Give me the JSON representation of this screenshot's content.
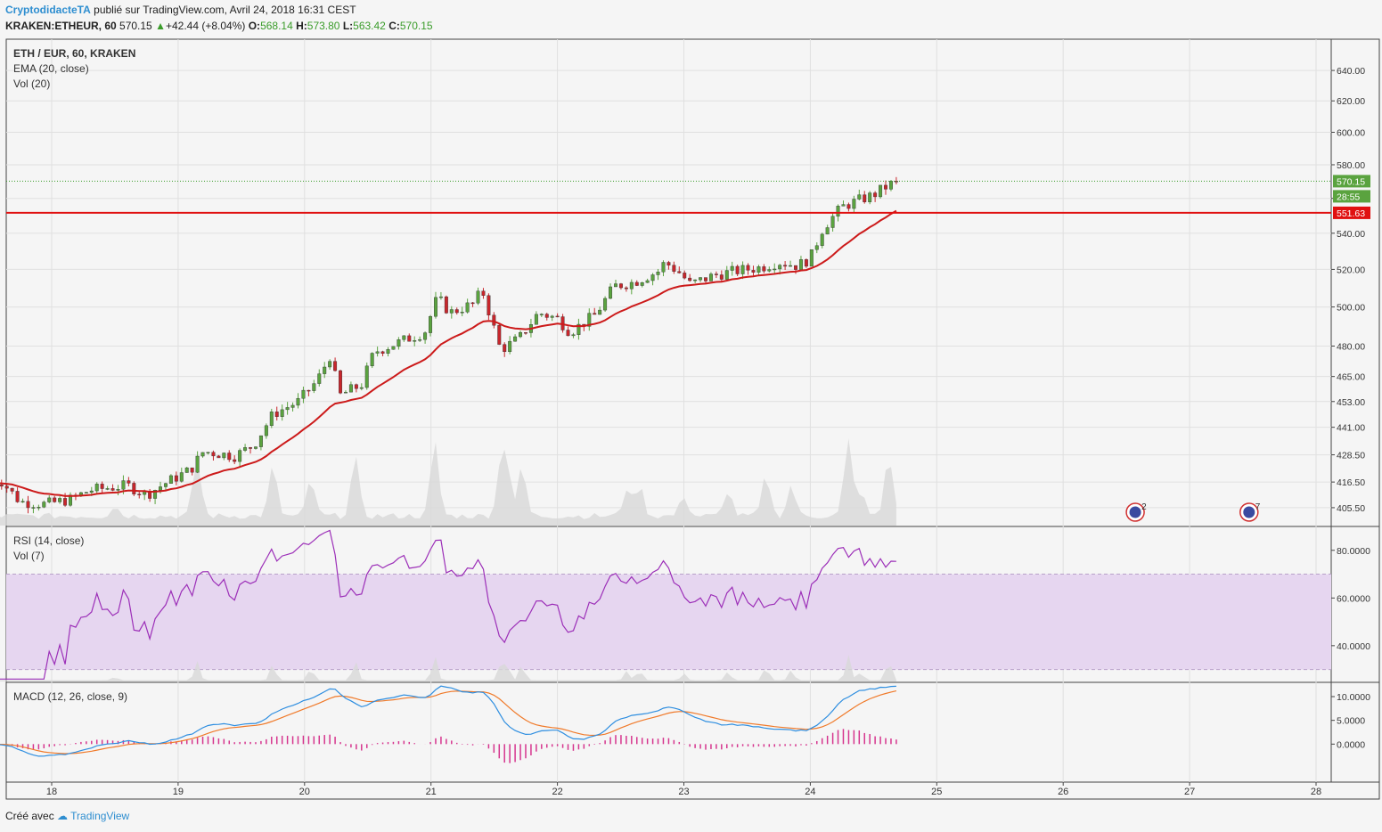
{
  "header": {
    "author": "CryptodidacteTA",
    "published": "publié sur TradingView.com, Avril 24, 2018 16:31 CEST",
    "symbol": "KRAKEN:ETHEUR, 60",
    "last": "570.15",
    "change": "+42.44 (+8.04%)",
    "o_label": "O:",
    "o": "568.14",
    "h_label": "H:",
    "h": "573.80",
    "l_label": "L:",
    "l": "563.42",
    "c_label": "C:",
    "c": "570.15"
  },
  "footer": {
    "created": "Créé avec",
    "brand": "TradingView"
  },
  "colors": {
    "up": "#5aa33f",
    "down": "#c8262c",
    "ema": "#cc1a1a",
    "level": "#e01010",
    "rsi": "#9c2fb8",
    "macd": "#2e8ee0",
    "signal": "#f07a2a",
    "hist": "#d6358e",
    "volume": "#d8d8d8"
  },
  "chart_data": [
    {
      "type": "candlestick",
      "title": "ETH / EUR, 60, KRAKEN",
      "indicators": [
        "EMA (20, close)",
        "Vol (20)"
      ],
      "x_ticks": [
        "18",
        "19",
        "20",
        "21",
        "22",
        "23",
        "24",
        "25",
        "26",
        "27",
        "28"
      ],
      "y_ticks": [
        "640.00",
        "620.00",
        "600.00",
        "580.00",
        "560.00",
        "540.00",
        "520.00",
        "500.00",
        "480.00",
        "465.00",
        "453.00",
        "441.00",
        "428.50",
        "416.50",
        "405.50"
      ],
      "y_tick_values": [
        640,
        620,
        600,
        580,
        560,
        540,
        520,
        500,
        480,
        465,
        453,
        441,
        428.5,
        416.5,
        405.5
      ],
      "price_labels": {
        "last": "570.15",
        "countdown": "28:55",
        "level": "551.63"
      },
      "level": 551.63,
      "last": 570.15,
      "scale": "log",
      "events": [
        {
          "day": 26.57,
          "label": "2"
        },
        {
          "day": 27.47,
          "label": "7"
        }
      ],
      "anchors": [
        [
          17.5,
          416
        ],
        [
          17.6,
          417
        ],
        [
          17.75,
          408
        ],
        [
          17.95,
          407
        ],
        [
          18.15,
          409
        ],
        [
          18.3,
          413
        ],
        [
          18.6,
          415
        ],
        [
          18.75,
          411
        ],
        [
          18.9,
          416
        ],
        [
          19.1,
          422
        ],
        [
          19.2,
          430
        ],
        [
          19.45,
          428
        ],
        [
          19.6,
          433
        ],
        [
          19.75,
          447
        ],
        [
          19.95,
          453
        ],
        [
          20.1,
          463
        ],
        [
          20.2,
          475
        ],
        [
          20.28,
          456
        ],
        [
          20.45,
          461
        ],
        [
          20.55,
          477
        ],
        [
          20.75,
          482
        ],
        [
          20.95,
          487
        ],
        [
          21.05,
          505
        ],
        [
          21.15,
          497
        ],
        [
          21.35,
          502
        ],
        [
          21.4,
          510
        ],
        [
          21.47,
          495
        ],
        [
          21.55,
          478
        ],
        [
          21.7,
          484
        ],
        [
          21.85,
          497
        ],
        [
          22.0,
          494
        ],
        [
          22.1,
          487
        ],
        [
          22.3,
          496
        ],
        [
          22.45,
          511
        ],
        [
          22.6,
          513
        ],
        [
          22.8,
          519
        ],
        [
          22.85,
          524
        ],
        [
          22.97,
          518
        ],
        [
          23.05,
          512
        ],
        [
          23.25,
          517
        ],
        [
          23.4,
          519
        ],
        [
          23.6,
          521
        ],
        [
          23.75,
          524
        ],
        [
          23.9,
          522
        ],
        [
          24.0,
          526
        ],
        [
          24.1,
          543
        ],
        [
          24.25,
          555
        ],
        [
          24.35,
          558
        ],
        [
          24.5,
          562
        ],
        [
          24.58,
          566
        ],
        [
          24.68,
          570.15
        ]
      ],
      "volume_peaks": [
        [
          18.5,
          0.12
        ],
        [
          19.15,
          0.72
        ],
        [
          19.75,
          0.62
        ],
        [
          20.05,
          0.45
        ],
        [
          20.4,
          0.73
        ],
        [
          21.03,
          0.92
        ],
        [
          21.55,
          0.55
        ],
        [
          21.6,
          0.62
        ],
        [
          21.72,
          0.6
        ],
        [
          22.55,
          0.35
        ],
        [
          22.65,
          0.38
        ],
        [
          23.0,
          0.25
        ],
        [
          23.35,
          0.32
        ],
        [
          23.65,
          0.5
        ],
        [
          23.85,
          0.38
        ],
        [
          24.3,
          0.95
        ],
        [
          24.4,
          0.3
        ],
        [
          24.62,
          0.75
        ]
      ]
    },
    {
      "type": "line",
      "title": "RSI (14, close)",
      "indicators": [
        "Vol (7)"
      ],
      "y_ticks": [
        "80.0000",
        "60.0000",
        "40.0000"
      ],
      "y_tick_values": [
        80,
        60,
        40
      ],
      "band": [
        30,
        70
      ],
      "series": [
        {
          "name": "RSI",
          "values_from": "anchors"
        }
      ]
    },
    {
      "type": "line",
      "title": "MACD (12, 26, close, 9)",
      "y_ticks": [
        "10.0000",
        "5.0000",
        "0.0000"
      ],
      "y_tick_values": [
        10,
        5,
        0
      ],
      "series": [
        {
          "name": "MACD"
        },
        {
          "name": "Signal"
        },
        {
          "name": "Histogram",
          "type": "bar"
        }
      ]
    }
  ]
}
